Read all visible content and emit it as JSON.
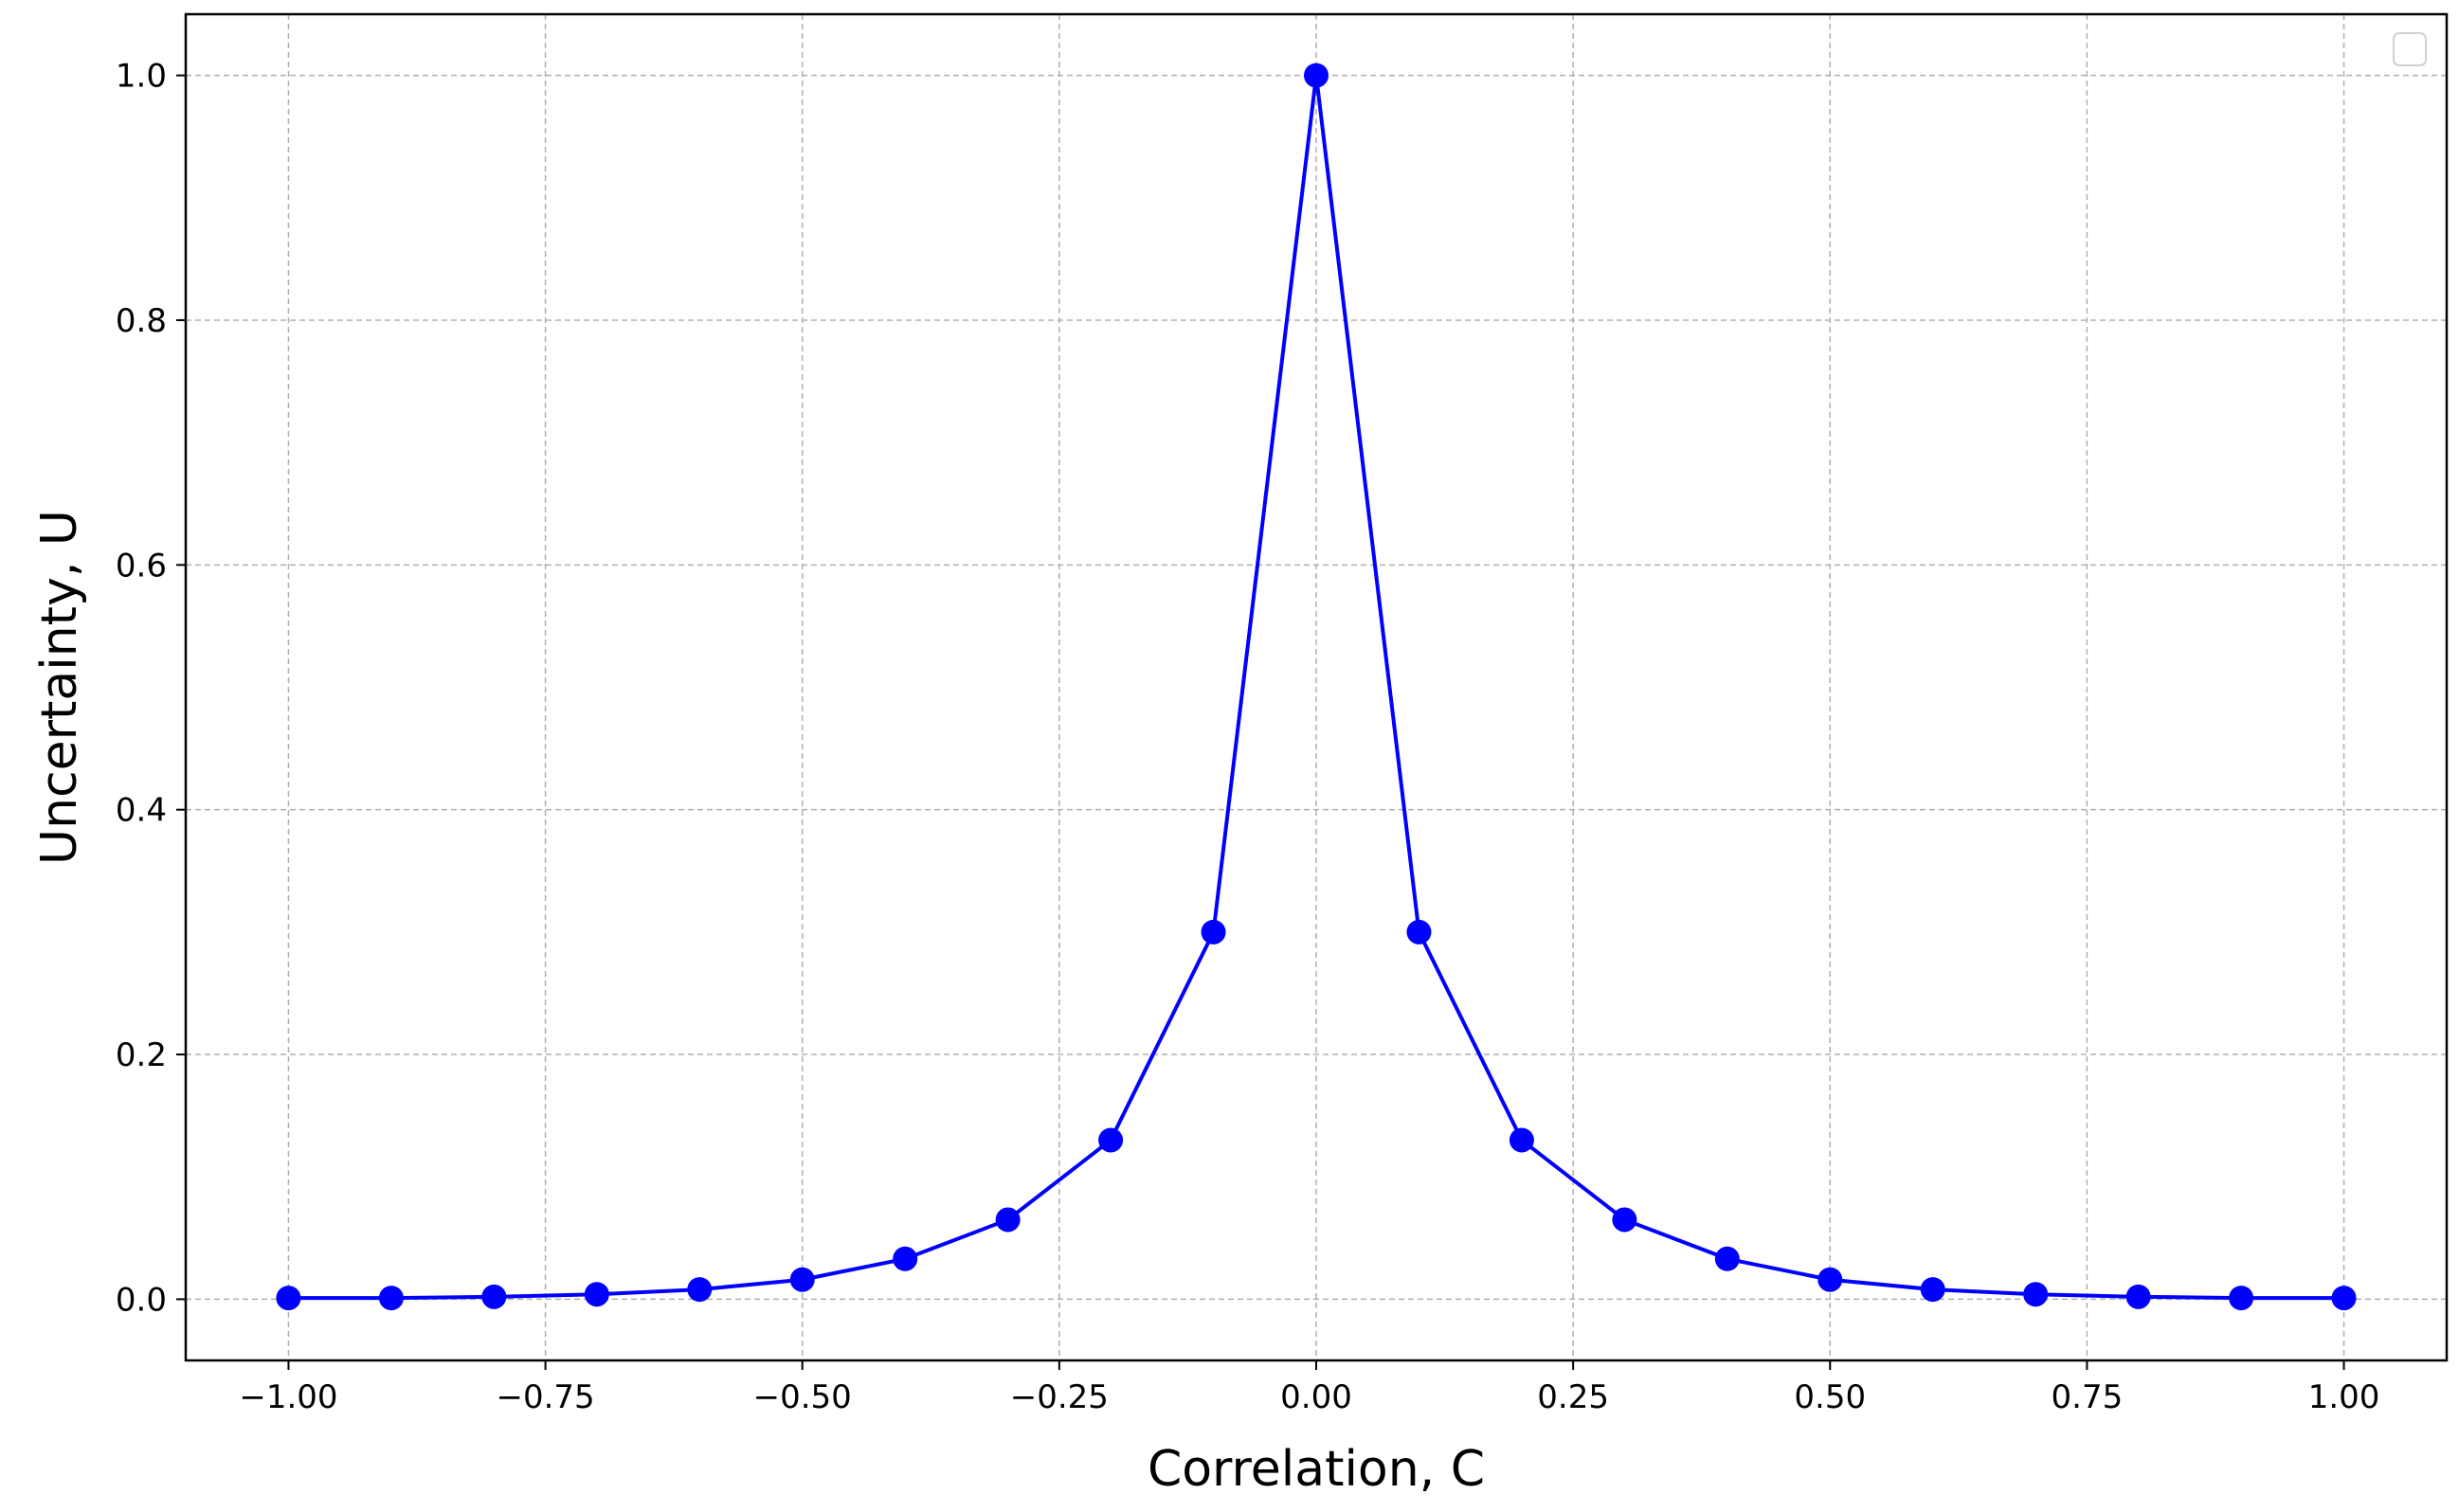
{
  "chart_data": {
    "type": "line",
    "title": "",
    "xlabel": "Correlation, C",
    "ylabel": "Uncertainty, U",
    "xlim": [
      -1.1,
      1.1
    ],
    "ylim": [
      -0.05,
      1.05
    ],
    "xticks": [
      -1.0,
      -0.75,
      -0.5,
      -0.25,
      0.0,
      0.25,
      0.5,
      0.75,
      1.0
    ],
    "xtick_labels": [
      "−1.00",
      "−0.75",
      "−0.50",
      "−0.25",
      "0.00",
      "0.25",
      "0.50",
      "0.75",
      "1.00"
    ],
    "yticks": [
      0.0,
      0.2,
      0.4,
      0.6,
      0.8,
      1.0
    ],
    "ytick_labels": [
      "0.0",
      "0.2",
      "0.4",
      "0.6",
      "0.8",
      "1.0"
    ],
    "grid": true,
    "legend": "top-right, empty",
    "series": [
      {
        "color": "#0000ff",
        "marker": "circle",
        "x": [
          -1.0,
          -0.9,
          -0.8,
          -0.7,
          -0.6,
          -0.5,
          -0.4,
          -0.3,
          -0.2,
          -0.1,
          0.0,
          0.1,
          0.2,
          0.3,
          0.4,
          0.5,
          0.6,
          0.7,
          0.8,
          0.9,
          1.0
        ],
        "y": [
          0.001,
          0.001,
          0.002,
          0.004,
          0.008,
          0.016,
          0.033,
          0.065,
          0.13,
          0.3,
          1.0,
          0.3,
          0.13,
          0.065,
          0.033,
          0.016,
          0.008,
          0.004,
          0.002,
          0.001,
          0.001
        ]
      }
    ]
  }
}
